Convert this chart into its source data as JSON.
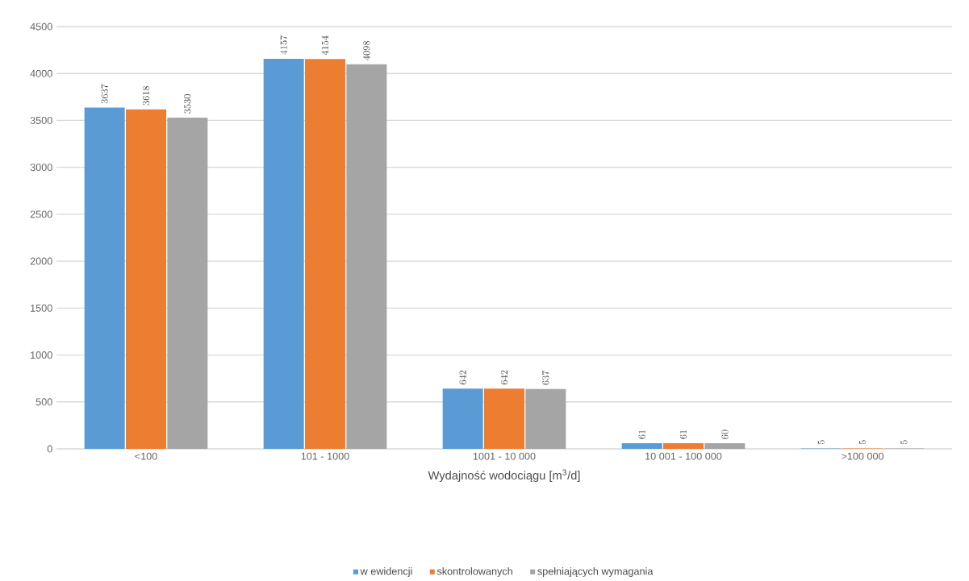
{
  "chart_data": {
    "type": "bar",
    "xlabel": "Wydajność wodociągu [m$^{3}$/d]",
    "categories": [
      "<100",
      "101 - 1000",
      "1001 - 10 000",
      "10 001 - 100 000",
      ">100 000"
    ],
    "series": [
      {
        "name": "w ewidencji",
        "color": "#5b9bd5",
        "values": [
          3637,
          4157,
          642,
          61,
          5
        ]
      },
      {
        "name": "skontrolowanych",
        "color": "#ed7d31",
        "values": [
          3618,
          4154,
          642,
          61,
          5
        ]
      },
      {
        "name": "spełniających wymagania",
        "color": "#a5a5a5",
        "values": [
          3530,
          4098,
          637,
          60,
          5
        ]
      }
    ],
    "ylim": [
      0,
      4500
    ],
    "yticks": [
      0,
      500,
      1000,
      1500,
      2000,
      2500,
      3000,
      3500,
      4000,
      4500
    ],
    "grid": "y",
    "legend": "bottom",
    "data_labels": true
  }
}
